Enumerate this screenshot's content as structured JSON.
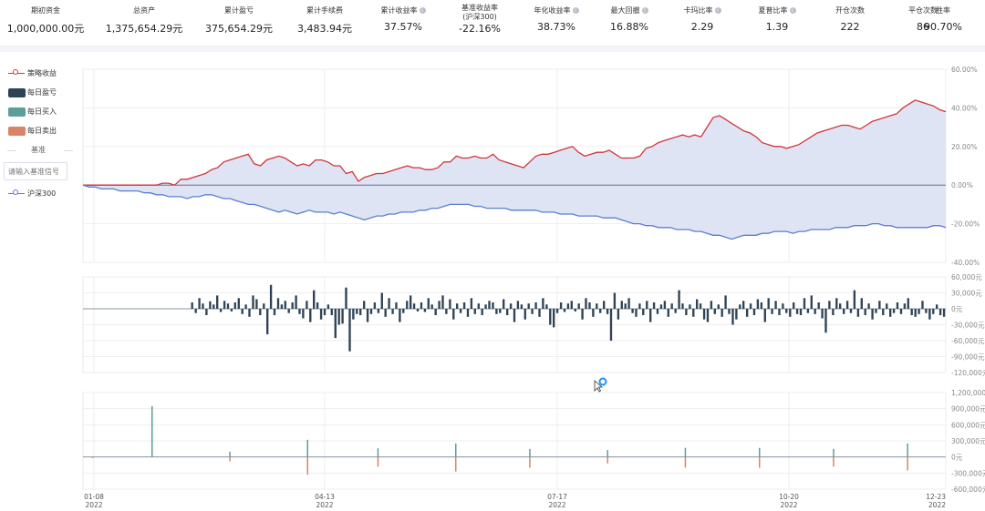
{
  "stats": [
    {
      "label": "期初资金",
      "value": "1,000,000.00元",
      "info": false
    },
    {
      "label": "总资产",
      "value": "1,375,654.29元",
      "info": false
    },
    {
      "label": "累计盈亏",
      "value": "375,654.29元",
      "info": false
    },
    {
      "label": "累计手续费",
      "value": "3,483.94元",
      "info": false
    },
    {
      "label": "累计收益率",
      "value": "37.57%",
      "info": true
    },
    {
      "label": "基准收益率",
      "sublabel": "(沪深300)",
      "value": "-22.16%",
      "info": false
    },
    {
      "label": "年化收益率",
      "value": "38.73%",
      "info": true
    },
    {
      "label": "最大回撤",
      "value": "16.88%",
      "info": true
    },
    {
      "label": "卡玛比率",
      "value": "2.29",
      "info": true
    },
    {
      "label": "夏普比率",
      "value": "1.39",
      "info": true
    },
    {
      "label": "开仓次数",
      "value": "222",
      "info": false
    },
    {
      "label": "平仓次数",
      "value": "86",
      "info": false
    },
    {
      "label": "胜率",
      "value": "90.70%",
      "info": false
    }
  ],
  "legend": {
    "strategy": "策略收益",
    "daily_pnl": "每日盈亏",
    "daily_buy": "每日买入",
    "daily_sell": "每日卖出",
    "benchmark_title": "基准",
    "benchmark_placeholder": "请输入基准信号",
    "benchmark": "沪深300"
  },
  "colors": {
    "strategy": "#d0373a",
    "benchmark": "#5b7fd0",
    "fill": "#dae1f2",
    "pnl": "#2f4356",
    "buy": "#5b9e9a",
    "sell": "#d98466"
  },
  "chart_data": [
    {
      "type": "line",
      "x_ticks": [
        "01-08\n2022",
        "04-13\n2022",
        "07-17\n2022",
        "10-20\n2022",
        "12-23\n2022"
      ],
      "y_ticks": [
        "60.00%",
        "40.00%",
        "20.00%",
        "0.00%",
        "-20.00%",
        "-40.00%"
      ],
      "ylim": [
        -40,
        60
      ],
      "series": [
        {
          "name": "策略收益",
          "values": [
            0,
            0,
            0,
            0,
            0,
            0,
            0,
            0,
            0,
            0,
            0,
            0,
            0,
            1,
            1,
            0,
            3,
            3,
            4,
            5,
            6,
            8,
            9,
            12,
            13,
            14,
            15,
            16,
            11,
            10,
            13,
            14,
            15,
            14,
            12,
            10,
            11,
            10,
            13,
            13,
            12,
            10,
            10,
            6,
            7,
            2,
            4,
            5,
            6,
            6,
            7,
            8,
            9,
            10,
            9,
            9,
            8,
            8,
            9,
            12,
            12,
            15,
            14,
            14,
            15,
            14,
            14,
            16,
            13,
            12,
            11,
            10,
            9,
            12,
            15,
            16,
            16,
            17,
            18,
            19,
            20,
            17,
            15,
            16,
            17,
            17,
            18,
            16,
            14,
            14,
            14,
            15,
            19,
            20,
            22,
            23,
            24,
            25,
            26,
            25,
            26,
            25,
            30,
            35,
            36,
            34,
            32,
            30,
            28,
            27,
            25,
            22,
            21,
            20,
            20,
            19,
            20,
            21,
            23,
            25,
            27,
            28,
            29,
            30,
            31,
            31,
            30,
            29,
            31,
            33,
            34,
            35,
            36,
            37,
            40,
            42,
            44,
            43,
            42,
            41,
            39,
            38
          ],
          "color": "#d0373a"
        },
        {
          "name": "沪深300",
          "values": [
            0,
            -1,
            -1,
            -2,
            -2,
            -2,
            -3,
            -3,
            -3,
            -3,
            -4,
            -4,
            -5,
            -5,
            -6,
            -6,
            -6,
            -7,
            -6,
            -6,
            -5,
            -5,
            -6,
            -7,
            -7,
            -8,
            -9,
            -10,
            -10,
            -11,
            -12,
            -13,
            -14,
            -13,
            -14,
            -15,
            -14,
            -13,
            -14,
            -14,
            -14,
            -15,
            -14,
            -15,
            -16,
            -17,
            -18,
            -17,
            -16,
            -16,
            -15,
            -15,
            -14,
            -14,
            -14,
            -13,
            -13,
            -12,
            -12,
            -11,
            -10,
            -10,
            -10,
            -10,
            -11,
            -11,
            -12,
            -12,
            -12,
            -12,
            -13,
            -13,
            -13,
            -13,
            -13,
            -14,
            -14,
            -14,
            -15,
            -15,
            -15,
            -16,
            -16,
            -16,
            -16,
            -17,
            -17,
            -17,
            -18,
            -19,
            -20,
            -20,
            -21,
            -21,
            -22,
            -22,
            -22,
            -23,
            -23,
            -23,
            -24,
            -24,
            -25,
            -26,
            -26,
            -27,
            -28,
            -27,
            -26,
            -26,
            -26,
            -25,
            -25,
            -24,
            -24,
            -24,
            -25,
            -24,
            -24,
            -23,
            -23,
            -23,
            -23,
            -22,
            -22,
            -22,
            -21,
            -21,
            -21,
            -20,
            -20,
            -21,
            -21,
            -22,
            -22,
            -22,
            -22,
            -22,
            -22,
            -21,
            -21,
            -22
          ],
          "color": "#5b7fd0"
        }
      ]
    },
    {
      "type": "bar",
      "name": "每日盈亏",
      "y_ticks": [
        "60,000元",
        "30,000元",
        "0元",
        "-30,000元",
        "-60,000元",
        "-90,000元",
        "-120,000元"
      ],
      "ylim": [
        -120000,
        60000
      ],
      "values": [
        0,
        0,
        0,
        0,
        0,
        0,
        0,
        0,
        0,
        0,
        0,
        0,
        0,
        0,
        0,
        0,
        0,
        0,
        0,
        0,
        0,
        0,
        0,
        0,
        0,
        0,
        0,
        0,
        0,
        0,
        12000,
        -8000,
        20000,
        10000,
        -12000,
        14000,
        8000,
        25000,
        -6000,
        15000,
        10000,
        -5000,
        12000,
        20000,
        -10000,
        8000,
        -15000,
        25000,
        18000,
        -12000,
        10000,
        -48000,
        45000,
        -12000,
        20000,
        8000,
        15000,
        -8000,
        12000,
        25000,
        -10000,
        -18000,
        15000,
        -25000,
        35000,
        12000,
        -20000,
        -12000,
        8000,
        -12000,
        -55000,
        -30000,
        -28000,
        40000,
        -80000,
        -20000,
        -10000,
        -12000,
        15000,
        -25000,
        -10000,
        12000,
        -8000,
        30000,
        -15000,
        20000,
        -10000,
        12000,
        -25000,
        -8000,
        15000,
        25000,
        10000,
        -5000,
        12000,
        -6000,
        20000,
        8000,
        -12000,
        15000,
        25000,
        -10000,
        18000,
        -20000,
        10000,
        -8000,
        12000,
        -15000,
        20000,
        -10000,
        10000,
        -12000,
        8000,
        15000,
        12000,
        -10000,
        -8000,
        18000,
        -12000,
        10000,
        -25000,
        15000,
        8000,
        -20000,
        10000,
        -10000,
        12000,
        -15000,
        20000,
        8000,
        -30000,
        -35000,
        -8000,
        12000,
        -6000,
        10000,
        15000,
        -5000,
        10000,
        -20000,
        20000,
        12000,
        -15000,
        10000,
        -8000,
        15000,
        -10000,
        -60000,
        30000,
        -20000,
        15000,
        10000,
        20000,
        -8000,
        -15000,
        10000,
        -12000,
        15000,
        -25000,
        12000,
        -10000,
        8000,
        15000,
        -15000,
        10000,
        -8000,
        35000,
        10000,
        -12000,
        8000,
        -15000,
        18000,
        10000,
        -20000,
        -25000,
        15000,
        -10000,
        8000,
        -15000,
        25000,
        -10000,
        -30000,
        -20000,
        8000,
        15000,
        -15000,
        10000,
        -12000,
        18000,
        12000,
        -25000,
        20000,
        -10000,
        15000,
        -12000,
        10000,
        -8000,
        -15000,
        12000,
        -10000,
        -12000,
        20000,
        -8000,
        25000,
        -10000,
        12000,
        -18000,
        -45000,
        15000,
        -12000,
        20000,
        10000,
        -10000,
        15000,
        -8000,
        35000,
        -15000,
        20000,
        -12000,
        10000,
        -20000,
        -8000,
        15000,
        -12000,
        10000,
        -15000,
        -8000,
        12000,
        -10000,
        10000,
        20000,
        -12000,
        -15000,
        -10000,
        15000,
        -8000,
        -20000,
        -10000,
        8000,
        -12000,
        -15000
      ]
    },
    {
      "type": "bar",
      "series": [
        {
          "name": "每日买入"
        },
        {
          "name": "每日卖出"
        }
      ],
      "y_ticks": [
        "1,200,000元",
        "900,000元",
        "600,000元",
        "300,000元",
        "0元",
        "-300,000元",
        "-600,000元"
      ],
      "ylim": [
        -600000,
        1200000
      ],
      "buy": [
        [
          0,
          0
        ],
        [
          16,
          950000
        ],
        [
          37,
          100000
        ],
        [
          58,
          320000
        ],
        [
          77,
          160000
        ],
        [
          98,
          250000
        ],
        [
          118,
          150000
        ],
        [
          139,
          130000
        ],
        [
          160,
          170000
        ],
        [
          180,
          170000
        ],
        [
          200,
          150000
        ],
        [
          220,
          250000
        ]
      ],
      "sell": [
        [
          0,
          -20000
        ],
        [
          37,
          -80000
        ],
        [
          58,
          -330000
        ],
        [
          77,
          -180000
        ],
        [
          98,
          -270000
        ],
        [
          118,
          -200000
        ],
        [
          139,
          -120000
        ],
        [
          160,
          -200000
        ],
        [
          180,
          -200000
        ],
        [
          200,
          -180000
        ],
        [
          220,
          -250000
        ]
      ]
    }
  ]
}
